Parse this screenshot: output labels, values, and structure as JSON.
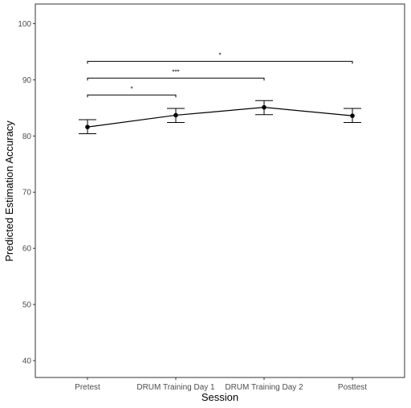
{
  "chart_data": {
    "type": "line",
    "xlabel": "Session",
    "ylabel": "Predicted Estimation Accuracy",
    "categories": [
      "Pretest",
      "DRUM Training Day 1",
      "DRUM Training Day 2",
      "Posttest"
    ],
    "values": [
      81.6,
      83.7,
      85.1,
      83.6
    ],
    "error_bars": [
      {
        "low": 80.4,
        "high": 82.9
      },
      {
        "low": 82.4,
        "high": 84.9
      },
      {
        "low": 83.8,
        "high": 86.3
      },
      {
        "low": 82.4,
        "high": 84.9
      }
    ],
    "ylim": [
      37,
      103.5
    ],
    "yticks": [
      40,
      50,
      60,
      70,
      80,
      90,
      100
    ],
    "grid": false,
    "significance_brackets": [
      {
        "from": "Pretest",
        "to": "DRUM Training Day 1",
        "y": 87.3,
        "label": "*"
      },
      {
        "from": "Pretest",
        "to": "DRUM Training Day 2",
        "y": 90.3,
        "label": "***"
      },
      {
        "from": "Pretest",
        "to": "Posttest",
        "y": 93.3,
        "label": "*"
      }
    ],
    "colors": {
      "line": "#000000",
      "point": "#000000",
      "panel_border": "#333333",
      "tick_text": "#4d4d4d"
    }
  }
}
